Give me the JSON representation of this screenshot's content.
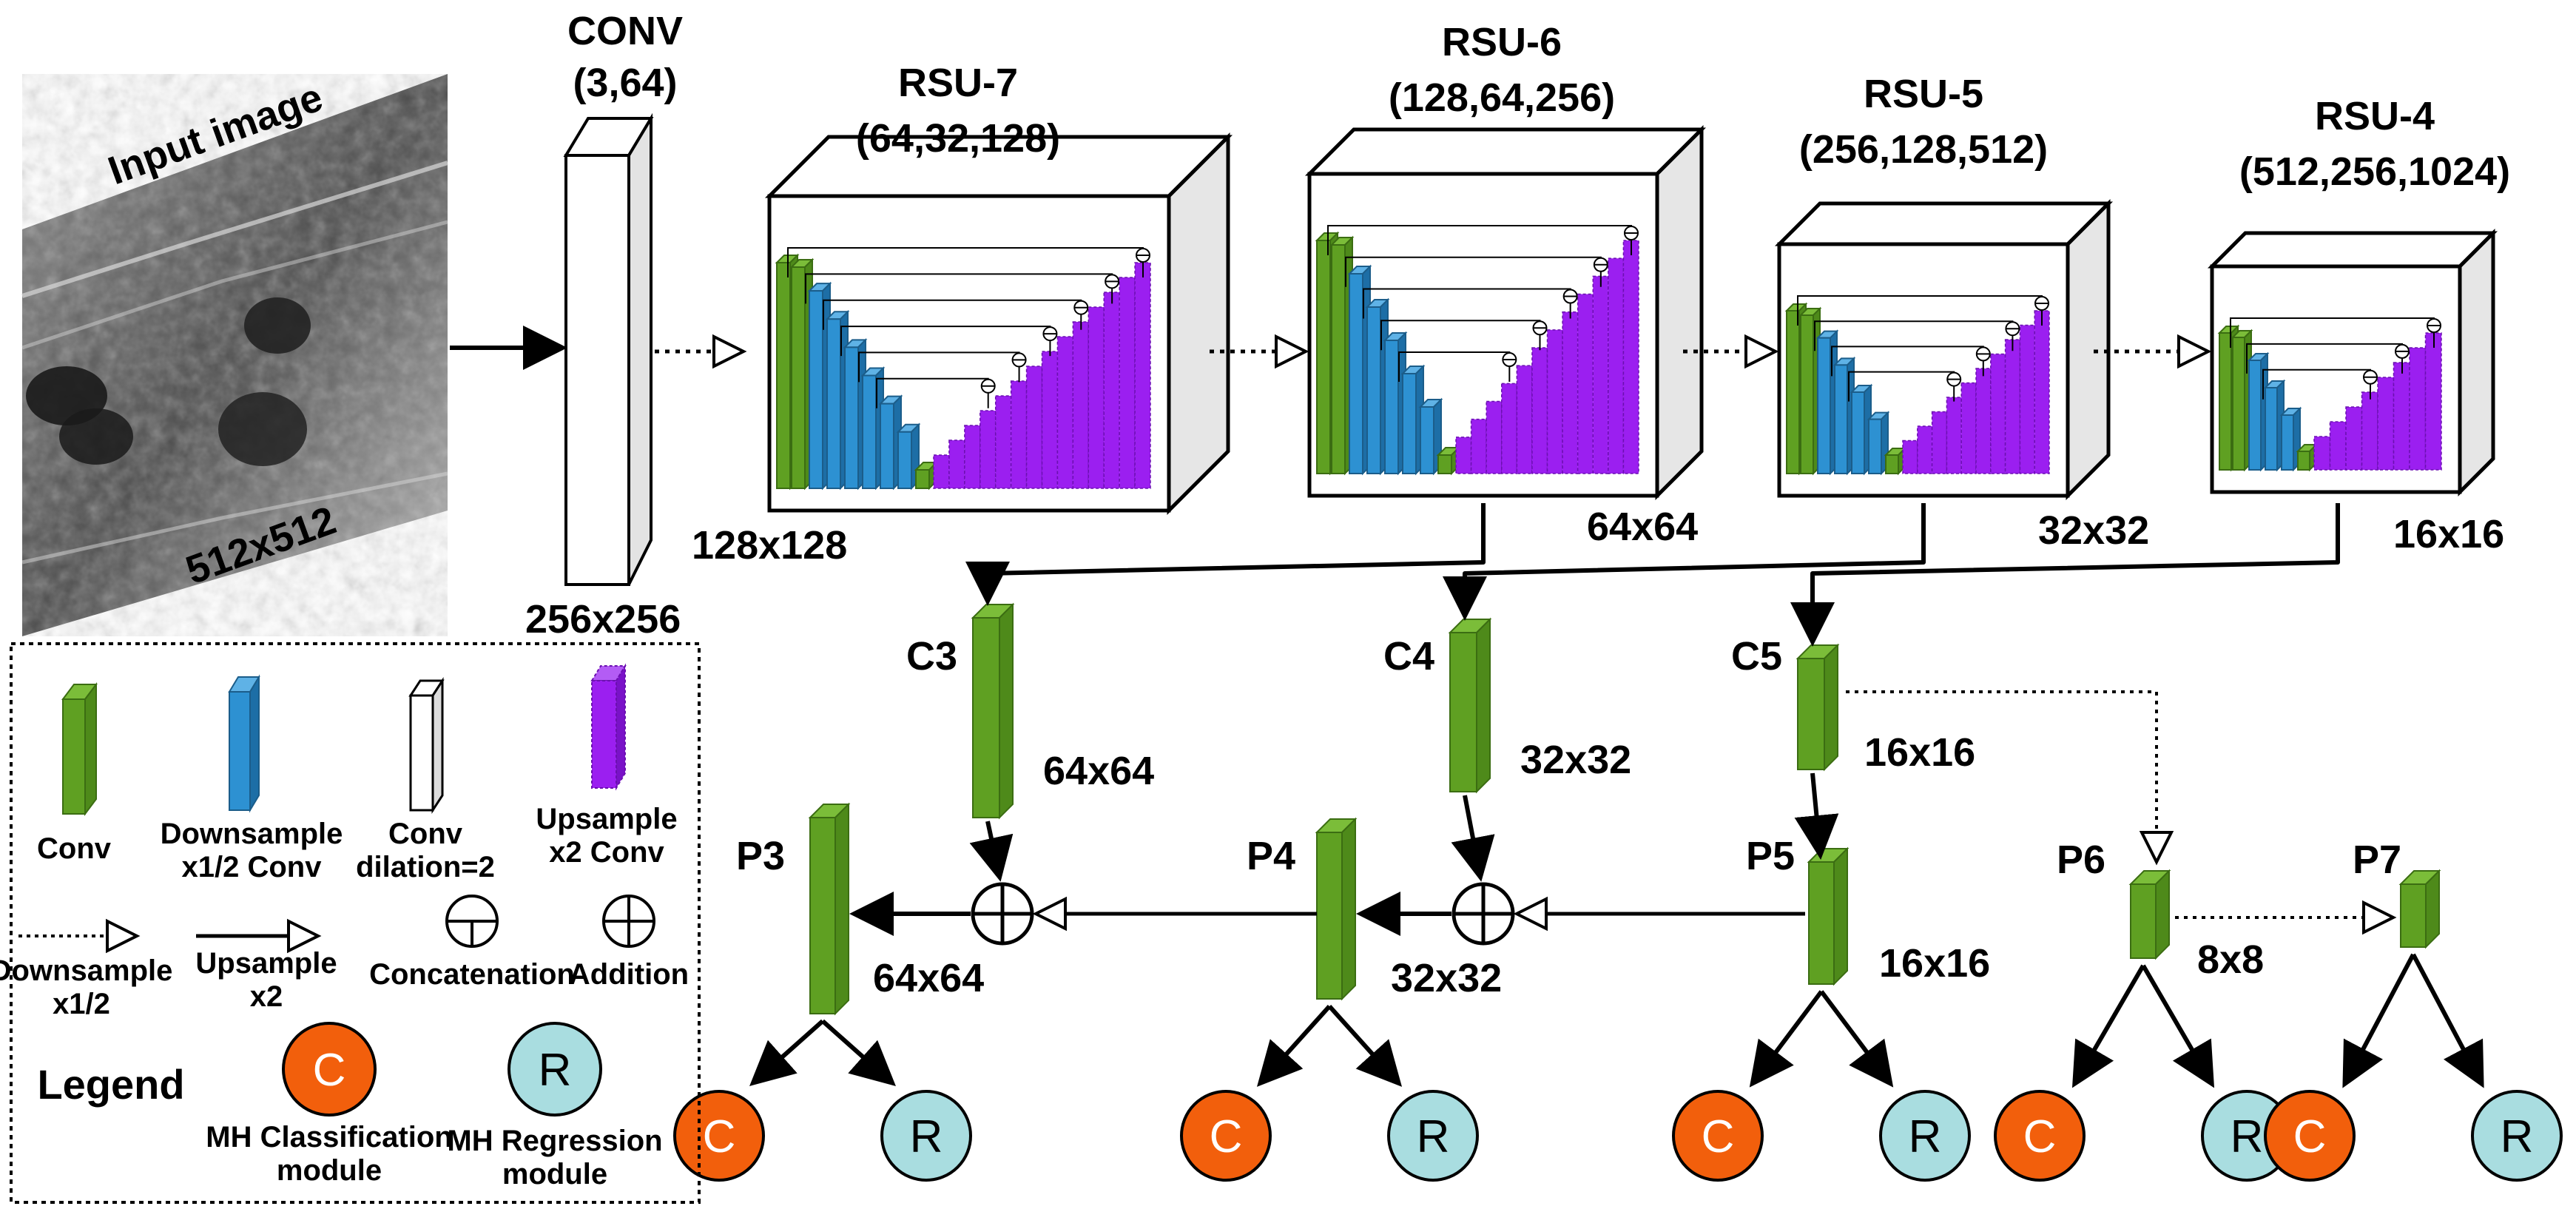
{
  "input": {
    "title": "Input image",
    "size": "512x512"
  },
  "conv": {
    "name": "CONV",
    "params": "(3,64)",
    "size": "256x256"
  },
  "rsu_blocks": [
    {
      "name": "RSU-7",
      "params": "(64,32,128)",
      "size": "128x128"
    },
    {
      "name": "RSU-6",
      "params": "(128,64,256)",
      "size": "64x64"
    },
    {
      "name": "RSU-5",
      "params": "(256,128,512)",
      "size": "32x32"
    },
    {
      "name": "RSU-4",
      "params": "(512,256,1024)",
      "size": "16x16"
    }
  ],
  "c_layers": [
    {
      "name": "C3",
      "size": "64x64"
    },
    {
      "name": "C4",
      "size": "32x32"
    },
    {
      "name": "C5",
      "size": "16x16"
    }
  ],
  "p_layers": [
    {
      "name": "P3",
      "size": "64x64"
    },
    {
      "name": "P4",
      "size": "32x32"
    },
    {
      "name": "P5",
      "size": "16x16"
    },
    {
      "name": "P6",
      "size": "8x8"
    },
    {
      "name": "P7",
      "size": ""
    }
  ],
  "heads": {
    "classification": "C",
    "regression": "R"
  },
  "legend": {
    "title": "Legend",
    "conv": "Conv",
    "downsample_conv": [
      "Downsample",
      "x1/2  Conv"
    ],
    "conv_dilation": [
      "Conv",
      "dilation=2"
    ],
    "upsample_conv": [
      "Upsample",
      "x2 Conv"
    ],
    "downsample": [
      "Downsample",
      "x1/2"
    ],
    "upsample": [
      "Upsample",
      "x2"
    ],
    "concatenation": "Concatenation",
    "addition": "Addition",
    "mh_classification": [
      "MH Classification",
      "module"
    ],
    "mh_regression": [
      "MH Regression",
      "module"
    ]
  },
  "colors": {
    "conv_green": "#5fa022",
    "down_blue": "#2d91d2",
    "up_purple": "#9b1ff0",
    "class_orange": "#f25f0c",
    "reg_cyan": "#a9dde0",
    "white_block": "#f0f0f0"
  }
}
